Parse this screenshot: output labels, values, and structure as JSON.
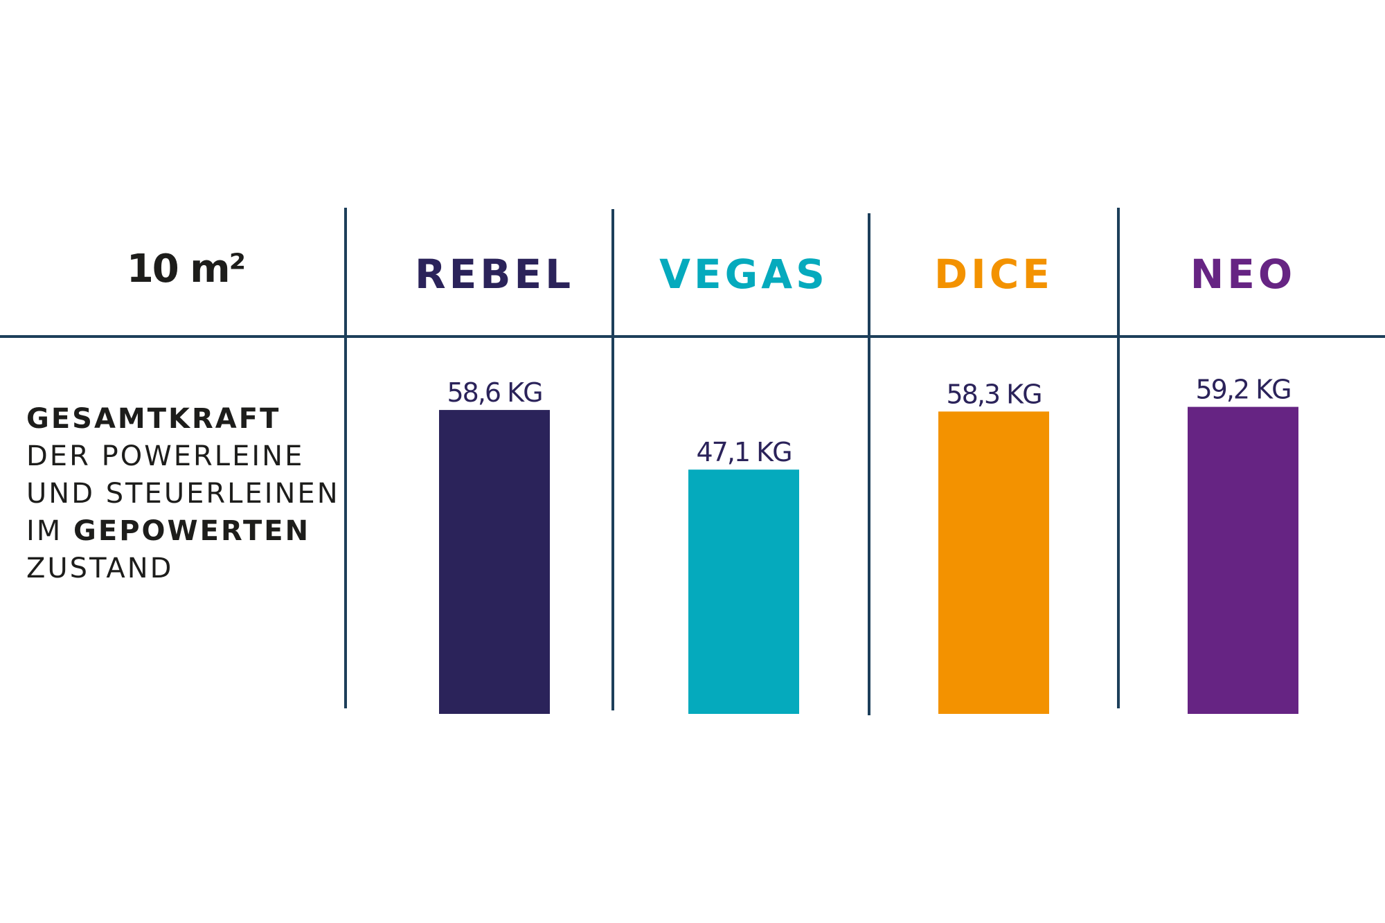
{
  "chart_data": {
    "type": "bar",
    "title": "10 m²",
    "description": [
      [
        {
          "text": "GESAMTKRAFT",
          "bold": true
        }
      ],
      [
        {
          "text": "DER POWERLEINE",
          "bold": false
        }
      ],
      [
        {
          "text": "UND STEUERLEINEN",
          "bold": false
        }
      ],
      [
        {
          "text": "IM ",
          "bold": false
        },
        {
          "text": "GEPOWERTEN",
          "bold": true
        }
      ],
      [
        {
          "text": "ZUSTAND",
          "bold": false
        }
      ]
    ],
    "categories": [
      "REBEL",
      "VEGAS",
      "DICE",
      "NEO"
    ],
    "values": [
      58.6,
      47.1,
      58.3,
      59.2
    ],
    "value_labels": [
      "58,6 KG",
      "47,1 KG",
      "58,3 KG",
      "59,2 KG"
    ],
    "colors": [
      "#2b235a",
      "#05aabd",
      "#f39200",
      "#662483"
    ],
    "value_label_color": "#2b235a"
  }
}
